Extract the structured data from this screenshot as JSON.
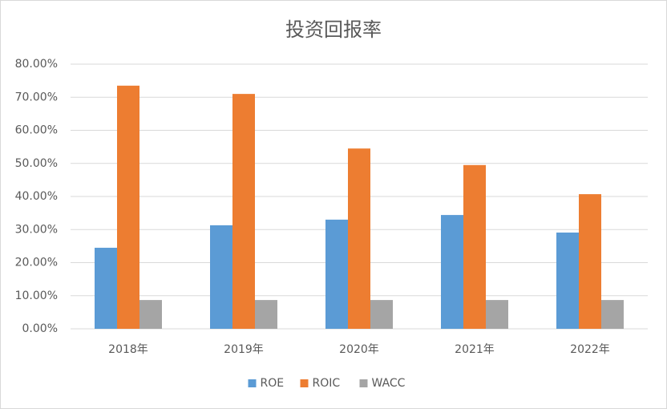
{
  "chart_data": {
    "type": "bar",
    "title": "投资回报率",
    "categories": [
      "2018年",
      "2019年",
      "2020年",
      "2021年",
      "2022年"
    ],
    "series": [
      {
        "name": "ROE",
        "color": "#5b9bd5",
        "values": [
          24.5,
          31.3,
          33.0,
          34.4,
          29.1
        ]
      },
      {
        "name": "ROIC",
        "color": "#ed7d31",
        "values": [
          73.5,
          71.0,
          54.5,
          49.5,
          40.7
        ]
      },
      {
        "name": "WACC",
        "color": "#a5a5a5",
        "values": [
          8.7,
          8.7,
          8.7,
          8.7,
          8.7
        ]
      }
    ],
    "ylim": [
      0,
      80
    ],
    "yticks": [
      {
        "value": 0,
        "label": "0.00%"
      },
      {
        "value": 10,
        "label": "10.00%"
      },
      {
        "value": 20,
        "label": "20.00%"
      },
      {
        "value": 30,
        "label": "30.00%"
      },
      {
        "value": 40,
        "label": "40.00%"
      },
      {
        "value": 50,
        "label": "50.00%"
      },
      {
        "value": 60,
        "label": "60.00%"
      },
      {
        "value": 70,
        "label": "70.00%"
      },
      {
        "value": 80,
        "label": "80.00%"
      }
    ],
    "grid": true,
    "legend": "bottom"
  }
}
